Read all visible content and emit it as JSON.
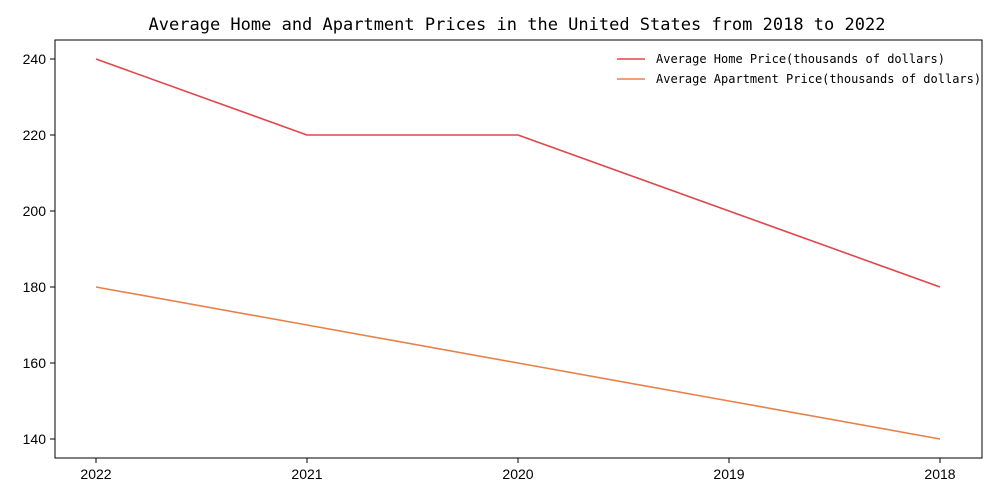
{
  "chart_data": {
    "type": "line",
    "title": "Average Home and Apartment Prices in the United States from 2018 to 2022",
    "xlabel": "",
    "ylabel": "",
    "categories": [
      "2022",
      "2021",
      "2020",
      "2019",
      "2018"
    ],
    "series": [
      {
        "name": "Average Home Price(thousands of dollars)",
        "values": [
          240,
          220,
          220,
          200,
          180
        ],
        "color": "#e0474c"
      },
      {
        "name": "Average Apartment Price(thousands of dollars)",
        "values": [
          180,
          170,
          160,
          150,
          140
        ],
        "color": "#e8804a"
      }
    ],
    "ylim": [
      135,
      245
    ],
    "yticks": [
      140,
      160,
      180,
      200,
      220,
      240
    ],
    "grid": false,
    "legend_position": "top-right"
  }
}
